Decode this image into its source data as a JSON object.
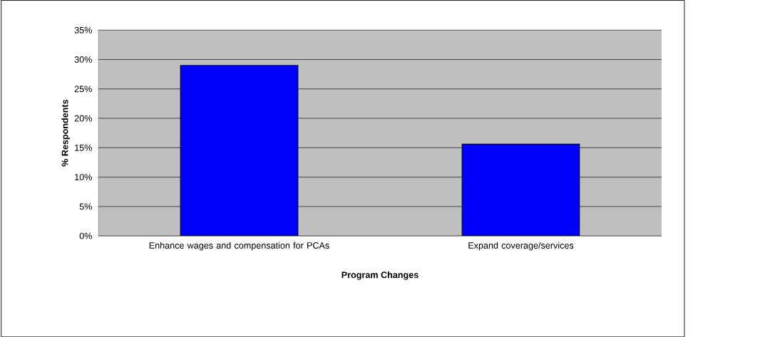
{
  "chart_data": {
    "type": "bar",
    "xlabel": "Program Changes",
    "ylabel": "% Respondents",
    "categories": [
      "Enhance wages and compensation for PCAs",
      "Expand coverage/services"
    ],
    "values": [
      29,
      15.6
    ],
    "color": "#0000ff",
    "ylim": [
      0,
      35
    ],
    "yticks": [
      {
        "value": 0,
        "label": "0%"
      },
      {
        "value": 5,
        "label": "5%"
      },
      {
        "value": 10,
        "label": "10%"
      },
      {
        "value": 15,
        "label": "15%"
      },
      {
        "value": 20,
        "label": "20%"
      },
      {
        "value": 25,
        "label": "25%"
      },
      {
        "value": 30,
        "label": "30%"
      },
      {
        "value": 35,
        "label": "35%"
      }
    ],
    "grid": "y"
  }
}
